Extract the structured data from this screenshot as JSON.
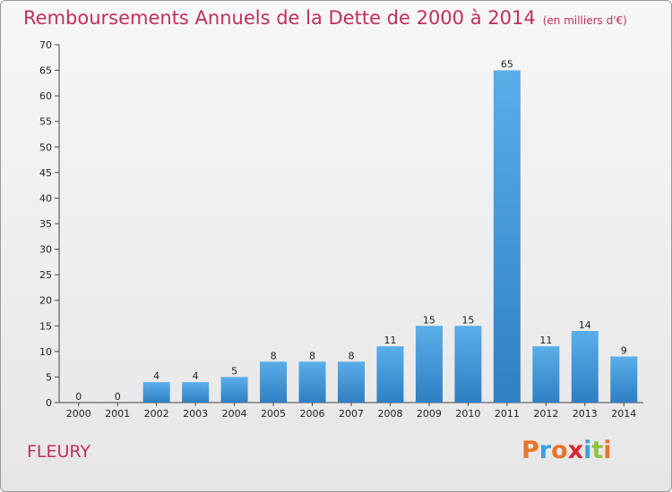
{
  "chart_data": {
    "type": "bar",
    "title": "Remboursements Annuels de la Dette de 2000 à 2014",
    "unit_label": "(en milliers d'€)",
    "categories": [
      "2000",
      "2001",
      "2002",
      "2003",
      "2004",
      "2005",
      "2006",
      "2007",
      "2008",
      "2009",
      "2010",
      "2011",
      "2012",
      "2013",
      "2014"
    ],
    "values": [
      0,
      0,
      4,
      4,
      5,
      8,
      8,
      8,
      11,
      15,
      15,
      65,
      11,
      14,
      9
    ],
    "data_labels": [
      "0",
      "0",
      "4",
      "4",
      "5",
      "8",
      "8",
      "8",
      "11",
      "15",
      "15",
      "65",
      "11",
      "14",
      "9"
    ],
    "ylim": [
      0,
      70
    ],
    "yticks": [
      0,
      5,
      10,
      15,
      20,
      25,
      30,
      35,
      40,
      45,
      50,
      55,
      60,
      65,
      70
    ],
    "grid": false,
    "bar_color": "#3f95d8"
  },
  "footer": {
    "city": "FLEURY",
    "logo": {
      "letters": [
        "P",
        "r",
        "o",
        "x",
        "i",
        "t",
        "i"
      ],
      "colors": [
        "#e8742a",
        "#3aa0d8",
        "#e8742a",
        "#d8282f",
        "#3aa0d8",
        "#8cc63f",
        "#e8742a"
      ]
    }
  }
}
